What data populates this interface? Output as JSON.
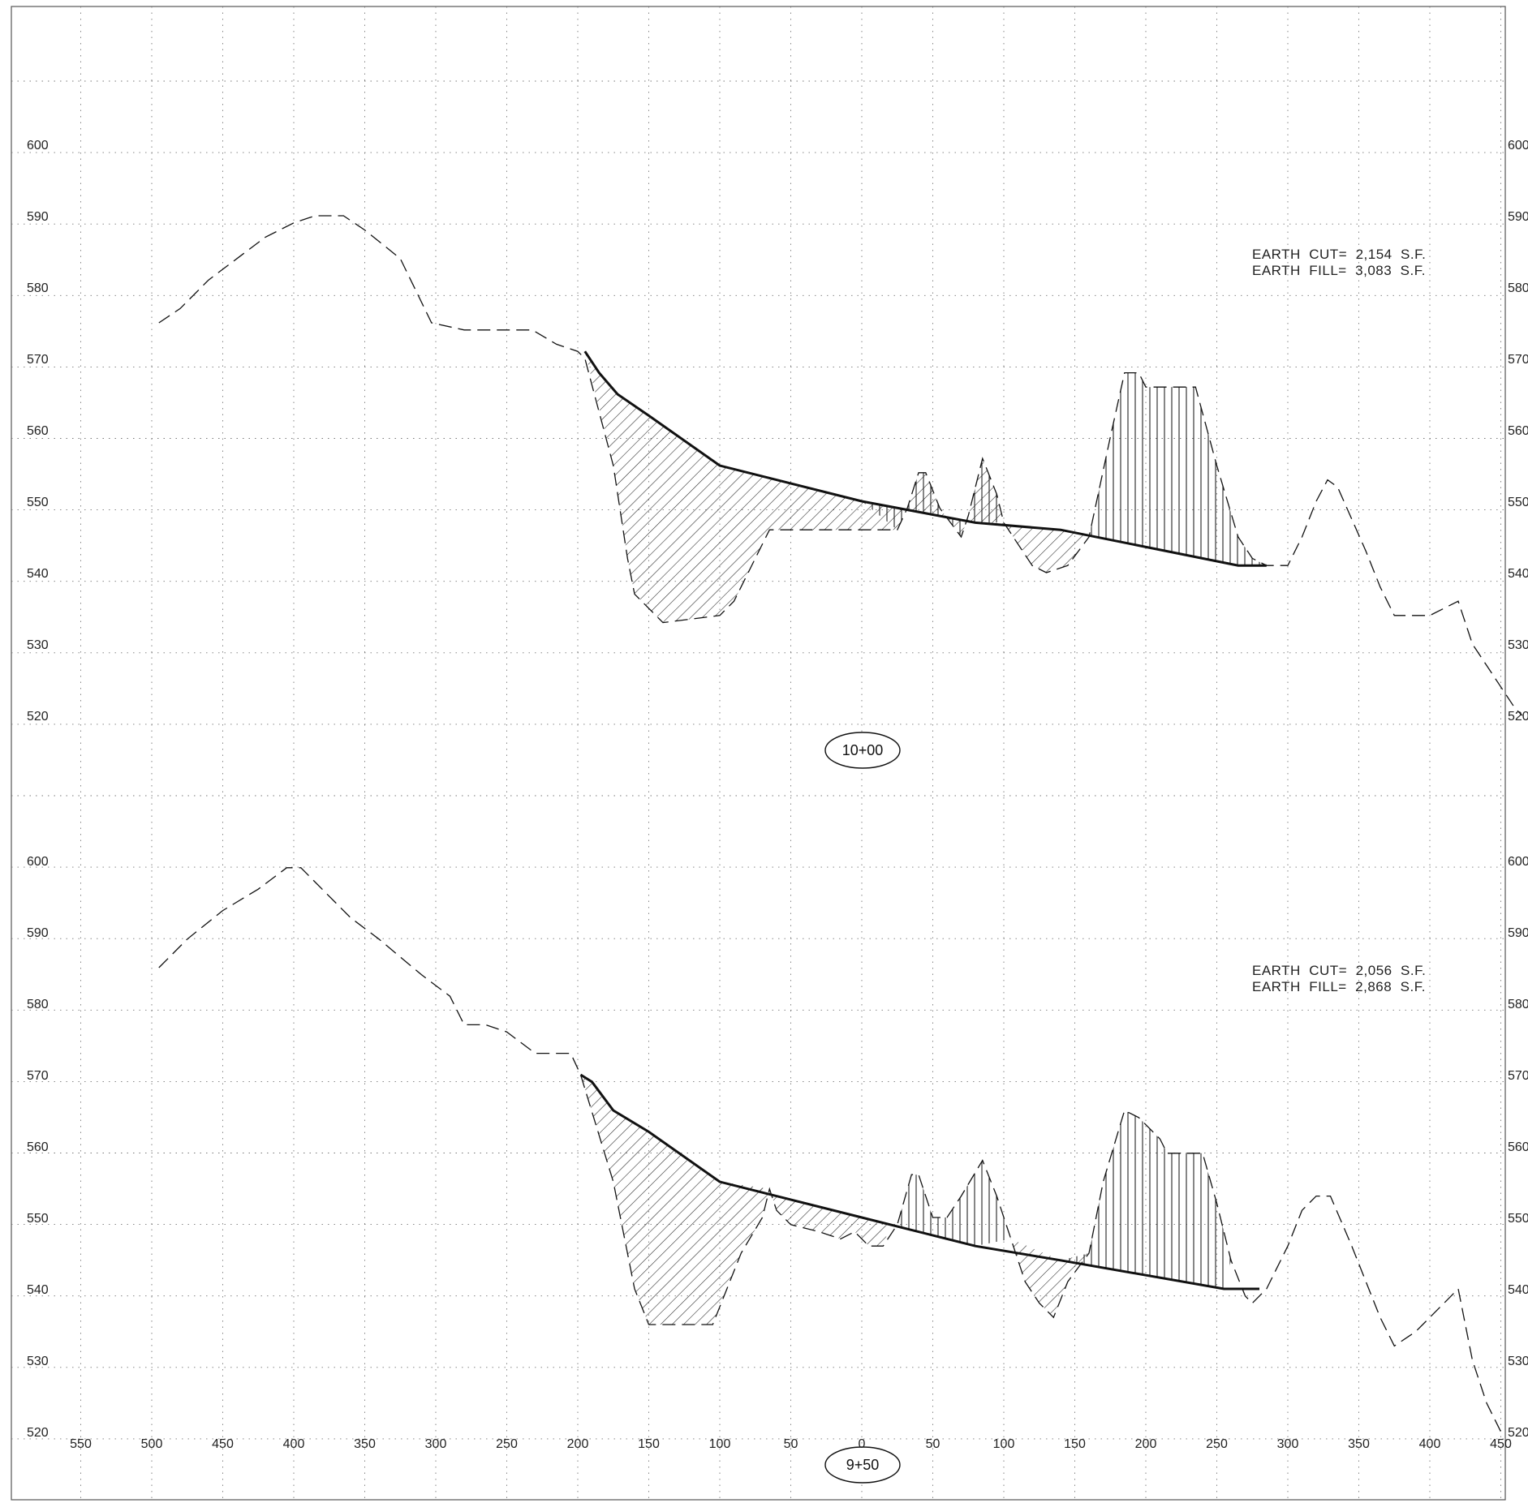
{
  "sheet": {
    "x_ticks": [
      "550",
      "500",
      "450",
      "400",
      "350",
      "300",
      "250",
      "200",
      "150",
      "100",
      "50",
      "0",
      "50",
      "100",
      "150",
      "200",
      "250",
      "300",
      "350",
      "400",
      "450"
    ],
    "y_ticks": [
      "600",
      "590",
      "580",
      "570",
      "560",
      "550",
      "540",
      "530",
      "520"
    ]
  },
  "chart_data": [
    {
      "type": "line",
      "station": "10+00",
      "notes": [
        "EARTH  CUT=  2,154  S.F.",
        "EARTH  FILL=  3,083  S.F."
      ],
      "x_range": [
        -550,
        450
      ],
      "y_range": [
        515,
        610
      ],
      "y_ticks": [
        600,
        590,
        580,
        570,
        560,
        550,
        540,
        530,
        520
      ],
      "series": [
        {
          "style": "dashed",
          "points": [
            [
              -495,
              575
            ],
            [
              -480,
              577
            ],
            [
              -460,
              581
            ],
            [
              -440,
              584
            ],
            [
              -420,
              587
            ],
            [
              -400,
              589
            ],
            [
              -385,
              590
            ],
            [
              -365,
              590
            ],
            [
              -350,
              588
            ],
            [
              -325,
              584
            ],
            [
              -303,
              575
            ],
            [
              -280,
              574
            ],
            [
              -232,
              574
            ],
            [
              -215,
              572
            ],
            [
              -200,
              571
            ],
            [
              -195,
              570
            ],
            [
              -175,
              555
            ],
            [
              -165,
              542
            ],
            [
              -160,
              537
            ],
            [
              -140,
              533
            ],
            [
              -100,
              534
            ],
            [
              -90,
              536
            ],
            [
              -80,
              540
            ],
            [
              -65,
              546
            ],
            [
              -55,
              546
            ],
            [
              -5,
              546
            ],
            [
              25,
              546
            ],
            [
              32,
              549
            ],
            [
              40,
              554
            ],
            [
              45,
              554
            ],
            [
              55,
              549
            ],
            [
              70,
              545
            ],
            [
              75,
              548
            ],
            [
              85,
              556
            ],
            [
              95,
              551
            ],
            [
              100,
              547
            ],
            [
              110,
              544
            ],
            [
              120,
              541
            ],
            [
              130,
              540
            ],
            [
              145,
              541
            ],
            [
              160,
              545
            ],
            [
              175,
              559
            ],
            [
              185,
              568
            ],
            [
              195,
              568
            ],
            [
              200,
              566
            ],
            [
              205,
              566
            ],
            [
              210,
              566
            ],
            [
              235,
              566
            ],
            [
              250,
              555
            ],
            [
              265,
              545
            ],
            [
              275,
              542
            ],
            [
              285,
              541
            ],
            [
              300,
              541
            ],
            [
              310,
              545
            ],
            [
              320,
              550
            ],
            [
              328,
              553
            ],
            [
              335,
              552
            ],
            [
              355,
              543
            ],
            [
              365,
              538
            ],
            [
              375,
              534
            ],
            [
              400,
              534
            ],
            [
              410,
              535
            ],
            [
              420,
              536
            ],
            [
              430,
              530
            ],
            [
              440,
              527
            ],
            [
              460,
              521
            ],
            [
              465,
              520
            ]
          ]
        },
        {
          "style": "solid",
          "points": [
            [
              -195,
              571
            ],
            [
              -185,
              568
            ],
            [
              -172,
              565
            ],
            [
              -150,
              562
            ],
            [
              -100,
              555
            ],
            [
              0,
              550
            ],
            [
              80,
              547
            ],
            [
              140,
              546
            ],
            [
              265,
              541
            ],
            [
              285,
              541
            ]
          ]
        }
      ],
      "hatch": {
        "cut": [
          [
            [
              -195,
              571
            ],
            [
              -185,
              568
            ],
            [
              -172,
              565
            ],
            [
              -150,
              562
            ],
            [
              -100,
              555
            ],
            [
              0,
              550
            ],
            [
              80,
              547
            ],
            [
              140,
              546
            ],
            [
              160,
              545
            ],
            [
              145,
              541
            ],
            [
              130,
              540
            ],
            [
              120,
              541
            ],
            [
              110,
              544
            ],
            [
              100,
              547
            ],
            [
              95,
              551
            ],
            [
              85,
              556
            ],
            [
              75,
              548
            ],
            [
              70,
              545
            ],
            [
              55,
              549
            ],
            [
              45,
              554
            ],
            [
              40,
              554
            ],
            [
              32,
              549
            ],
            [
              25,
              546
            ],
            [
              -55,
              546
            ],
            [
              -65,
              546
            ],
            [
              -80,
              540
            ],
            [
              -90,
              536
            ],
            [
              -100,
              534
            ],
            [
              -140,
              533
            ],
            [
              -160,
              537
            ],
            [
              -165,
              542
            ],
            [
              -175,
              555
            ]
          ]
        ],
        "fill": [
          [
            [
              25,
              546
            ],
            [
              32,
              549
            ],
            [
              40,
              554
            ],
            [
              45,
              554
            ],
            [
              55,
              549
            ],
            [
              70,
              545
            ],
            [
              75,
              548
            ],
            [
              85,
              556
            ],
            [
              95,
              551
            ],
            [
              100,
              547
            ],
            [
              80,
              547
            ],
            [
              0,
              550
            ]
          ],
          [
            [
              160,
              545
            ],
            [
              175,
              559
            ],
            [
              185,
              568
            ],
            [
              195,
              568
            ],
            [
              200,
              566
            ],
            [
              235,
              566
            ],
            [
              250,
              555
            ],
            [
              265,
              545
            ],
            [
              275,
              542
            ],
            [
              285,
              541
            ],
            [
              265,
              541
            ],
            [
              140,
              546
            ]
          ]
        ]
      }
    },
    {
      "type": "line",
      "station": "9+50",
      "notes": [
        "EARTH  CUT=  2,056  S.F.",
        "EARTH  FILL=  2,868  S.F."
      ],
      "x_range": [
        -550,
        450
      ],
      "y_range": [
        518,
        610
      ],
      "y_ticks": [
        600,
        590,
        580,
        570,
        560,
        550,
        540,
        530,
        520
      ],
      "series": [
        {
          "style": "dashed",
          "points": [
            [
              -495,
              585
            ],
            [
              -475,
              589
            ],
            [
              -450,
              593
            ],
            [
              -425,
              596
            ],
            [
              -405,
              599
            ],
            [
              -395,
              599
            ],
            [
              -380,
              596
            ],
            [
              -360,
              592
            ],
            [
              -340,
              589
            ],
            [
              -310,
              584
            ],
            [
              -290,
              581
            ],
            [
              -280,
              577
            ],
            [
              -265,
              577
            ],
            [
              -250,
              576
            ],
            [
              -230,
              573
            ],
            [
              -205,
              573
            ],
            [
              -198,
              570
            ],
            [
              -175,
              555
            ],
            [
              -160,
              540
            ],
            [
              -150,
              535
            ],
            [
              -105,
              535
            ],
            [
              -95,
              540
            ],
            [
              -85,
              545
            ],
            [
              -70,
              550
            ],
            [
              -65,
              554
            ],
            [
              -60,
              551
            ],
            [
              -50,
              549
            ],
            [
              -30,
              548
            ],
            [
              -15,
              547
            ],
            [
              -5,
              548
            ],
            [
              5,
              546
            ],
            [
              15,
              546
            ],
            [
              25,
              549
            ],
            [
              35,
              556
            ],
            [
              40,
              556
            ],
            [
              50,
              550
            ],
            [
              60,
              550
            ],
            [
              70,
              553
            ],
            [
              85,
              558
            ],
            [
              95,
              553
            ],
            [
              105,
              547
            ],
            [
              115,
              541
            ],
            [
              125,
              538
            ],
            [
              135,
              536
            ],
            [
              145,
              541
            ],
            [
              160,
              545
            ],
            [
              170,
              555
            ],
            [
              185,
              565
            ],
            [
              195,
              564
            ],
            [
              210,
              561
            ],
            [
              215,
              559
            ],
            [
              220,
              559
            ],
            [
              240,
              559
            ],
            [
              250,
              552
            ],
            [
              260,
              544
            ],
            [
              270,
              539
            ],
            [
              275,
              538
            ],
            [
              285,
              540
            ],
            [
              300,
              546
            ],
            [
              310,
              551
            ],
            [
              320,
              553
            ],
            [
              330,
              553
            ],
            [
              345,
              546
            ],
            [
              365,
              536
            ],
            [
              375,
              532
            ],
            [
              390,
              534
            ],
            [
              410,
              538
            ],
            [
              420,
              540
            ],
            [
              430,
              530
            ],
            [
              440,
              524
            ],
            [
              450,
              520
            ]
          ]
        },
        {
          "style": "solid",
          "points": [
            [
              -198,
              570
            ],
            [
              -190,
              569
            ],
            [
              -175,
              565
            ],
            [
              -150,
              562
            ],
            [
              -100,
              555
            ],
            [
              0,
              550
            ],
            [
              80,
              546
            ],
            [
              140,
              544
            ],
            [
              255,
              540
            ],
            [
              280,
              540
            ]
          ]
        }
      ],
      "hatch": {
        "cut": [
          [
            [
              -198,
              570
            ],
            [
              -190,
              569
            ],
            [
              -175,
              565
            ],
            [
              -150,
              562
            ],
            [
              -100,
              555
            ],
            [
              -65,
              554
            ],
            [
              -70,
              550
            ],
            [
              -85,
              545
            ],
            [
              -95,
              540
            ],
            [
              -105,
              535
            ],
            [
              -150,
              535
            ],
            [
              -160,
              540
            ],
            [
              -175,
              555
            ]
          ],
          [
            [
              -65,
              554
            ],
            [
              -100,
              555
            ],
            [
              0,
              550
            ],
            [
              20,
              549
            ],
            [
              15,
              546
            ],
            [
              5,
              546
            ],
            [
              -5,
              548
            ],
            [
              -15,
              547
            ],
            [
              -30,
              548
            ],
            [
              -50,
              549
            ],
            [
              -60,
              551
            ]
          ],
          [
            [
              105,
              547
            ],
            [
              115,
              541
            ],
            [
              125,
              538
            ],
            [
              135,
              536
            ],
            [
              145,
              541
            ],
            [
              160,
              545
            ],
            [
              140,
              544
            ]
          ]
        ],
        "fill": [
          [
            [
              20,
              549
            ],
            [
              25,
              549
            ],
            [
              35,
              556
            ],
            [
              40,
              556
            ],
            [
              50,
              550
            ],
            [
              60,
              550
            ],
            [
              70,
              553
            ],
            [
              85,
              558
            ],
            [
              95,
              553
            ],
            [
              105,
              547
            ],
            [
              80,
              546
            ],
            [
              0,
              550
            ]
          ],
          [
            [
              160,
              545
            ],
            [
              170,
              555
            ],
            [
              185,
              565
            ],
            [
              195,
              564
            ],
            [
              210,
              561
            ],
            [
              215,
              559
            ],
            [
              240,
              559
            ],
            [
              250,
              552
            ],
            [
              260,
              544
            ],
            [
              255,
              540
            ],
            [
              140,
              544
            ]
          ]
        ]
      }
    }
  ]
}
